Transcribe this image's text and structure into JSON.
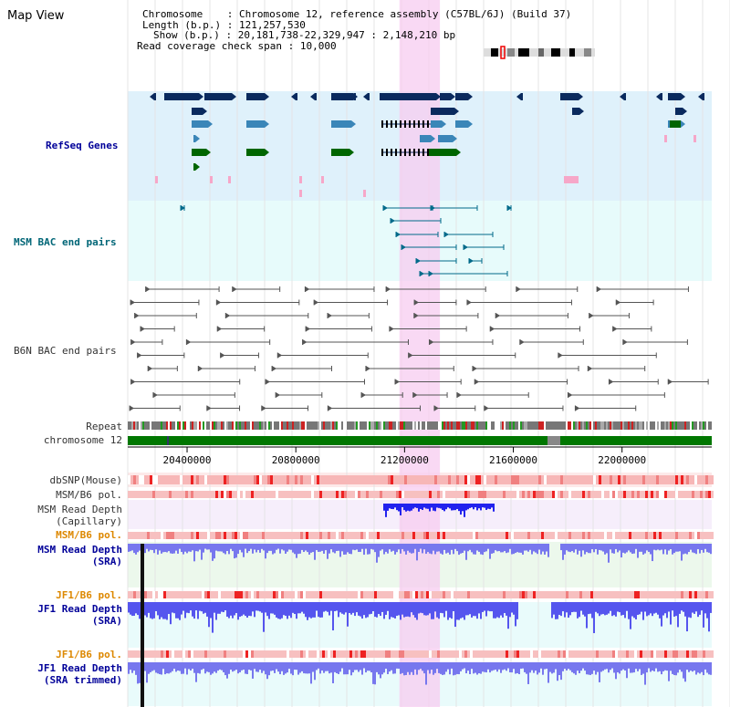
{
  "window": {
    "title": "Map View"
  },
  "info": {
    "chromosome_label": "Chromosome",
    "chromosome_value": "Chromosome 12, reference assembly (C57BL/6J) (Build 37)",
    "length_label": "Length (b.p.)",
    "length_value": "121,257,530",
    "show_label": "Show (b.p.)",
    "show_value": "20,181,738-22,329,947 : 2,148,210 bp",
    "coverage_label": "Read coverage check span",
    "coverage_value": "10,000"
  },
  "tracks": {
    "refseq": "RefSeq Genes",
    "msm_bac": "MSM BAC end pairs",
    "b6n_bac": "B6N BAC end pairs",
    "repeat": "Repeat",
    "chromosome": "chromosome 12",
    "dbsnp": "dbSNP(Mouse)",
    "msm_pol_1": "MSM/B6 pol.",
    "msm_depth_cap_1": "MSM Read Depth",
    "msm_depth_cap_2": "(Capillary)",
    "msm_pol_2": "MSM/B6 pol.",
    "msm_depth_sra_1": "MSM Read Depth",
    "msm_depth_sra_2": "(SRA)",
    "jf1_pol_1": "JF1/B6 pol.",
    "jf1_depth_sra_1": "JF1 Read Depth",
    "jf1_depth_sra_2": "(SRA)",
    "jf1_pol_2": "JF1/B6 pol.",
    "jf1_depth_trim_1": "JF1 Read Depth",
    "jf1_depth_trim_2": "(SRA trimmed)"
  },
  "axis": {
    "ticks": [
      "20400000",
      "20800000",
      "21200000",
      "21600000",
      "22000000"
    ],
    "tick_values": [
      20400000,
      20800000,
      21200000,
      21600000,
      22000000
    ],
    "start": 20181738,
    "end": 22329947
  },
  "highlight": {
    "start": 21181000,
    "end": 21330000
  },
  "colors": {
    "refseq_bg": "#dff1fb",
    "bac_bg": "#e7fbfb",
    "highlight": "#f7ccf0",
    "gene_navy": "#0a2a5e",
    "gene_blue": "#3a86b8",
    "gene_green": "#006600",
    "bac_teal": "#006a8a",
    "bac_gray": "#555555",
    "depth_blue": "#3333ee",
    "depth_light": "#7777ee",
    "pol_pink": "#f7c0c0",
    "chrom_green": "#007700"
  }
}
